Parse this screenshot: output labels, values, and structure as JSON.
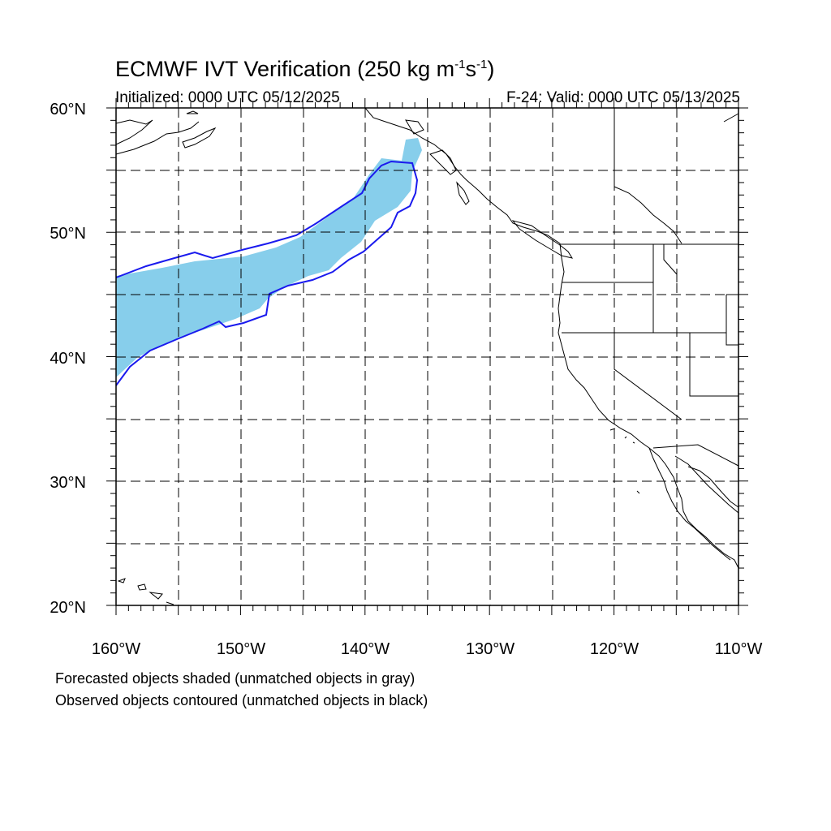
{
  "title": {
    "main": "ECMWF IVT Verification (250 kg m",
    "sup1": "-1",
    "mid": "s",
    "sup2": "-1",
    "end": ")"
  },
  "subtitle": {
    "left": "Initialized: 0000 UTC 05/12/2025",
    "right": "F-24: Valid: 0000 UTC 05/13/2025"
  },
  "map": {
    "projection": "cylindrical-equidistant",
    "lon_range": [
      -160,
      -110
    ],
    "lat_range": [
      20,
      60
    ],
    "grid": "dashed",
    "lat_labels": [
      "60°N",
      "50°N",
      "40°N",
      "30°N",
      "20°N"
    ],
    "lon_labels": [
      "160°W",
      "150°W",
      "140°W",
      "130°W",
      "120°W",
      "110°W"
    ],
    "colors": {
      "forecast_fill": "#87ceeb",
      "observed_contour": "#1a1aee",
      "coast": "#000000"
    }
  },
  "layers": {
    "forecast_object": "Forecasted object (shaded)",
    "observed_object": "Observed object (contour)"
  },
  "captions": {
    "line1": "Forecasted objects shaded (unmatched objects in gray)",
    "line2": "Observed objects contoured (unmatched objects in black)"
  }
}
